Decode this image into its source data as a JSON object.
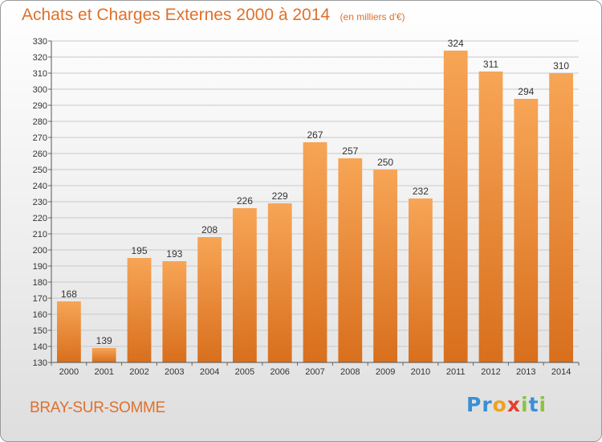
{
  "chart_data": {
    "type": "bar",
    "title": "Achats et Charges Externes 2000 à 2014",
    "subtitle": "(en milliers d'€)",
    "categories": [
      "2000",
      "2001",
      "2002",
      "2003",
      "2004",
      "2005",
      "2006",
      "2007",
      "2008",
      "2009",
      "2010",
      "2011",
      "2012",
      "2013",
      "2014"
    ],
    "values": [
      168,
      139,
      195,
      193,
      208,
      226,
      229,
      267,
      257,
      250,
      232,
      324,
      311,
      294,
      310
    ],
    "ylim": [
      130,
      330
    ],
    "ytick_step": 10,
    "grid": true,
    "bar_color": "#f0923f"
  },
  "footer": {
    "town": "BRAY-SUR-SOMME",
    "brand_letters": [
      {
        "ch": "P",
        "color": "#3a8fd6"
      },
      {
        "ch": "r",
        "color": "#3a8fd6"
      },
      {
        "ch": "o",
        "color": "#f0a020"
      },
      {
        "ch": "x",
        "color": "#e83c2c"
      },
      {
        "ch": "i",
        "color": "#8ac43f"
      },
      {
        "ch": "t",
        "color": "#3a8fd6"
      },
      {
        "ch": "i",
        "color": "#8ac43f"
      }
    ]
  }
}
